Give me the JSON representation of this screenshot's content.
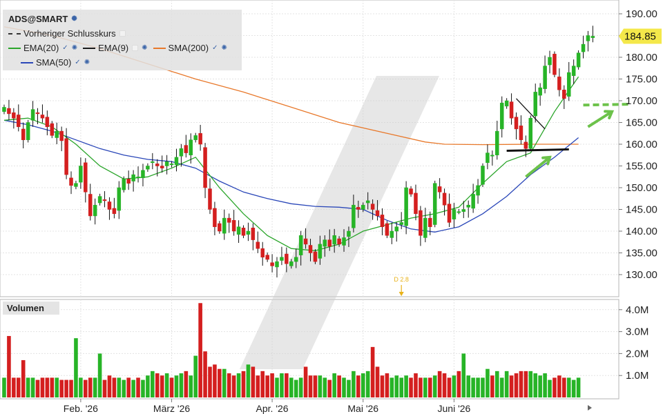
{
  "legend": {
    "symbol": "ADS@SMART",
    "prev_close": "Vorheriger Schlusskurs",
    "ema20": "EMA(20)",
    "ema9": "EMA(9)",
    "sma200": "SMA(200)",
    "sma50": "SMA(50)"
  },
  "volume_title": "Volumen",
  "last_price_label": "184.85",
  "dividend_marker": "D 2.8",
  "colors": {
    "up": "#27b427",
    "down": "#d41f1f",
    "ema20": "#2aa52a",
    "ema9": "#1a1a1a",
    "sma200": "#e8782a",
    "sma50": "#2946b8",
    "last_price_bg": "#f4e84a",
    "annotation_green": "#6cc24a"
  },
  "chart_data": [
    {
      "type": "candlestick",
      "title": "ADS@SMART",
      "yticks": [
        "130.00",
        "135.00",
        "140.00",
        "145.00",
        "150.00",
        "155.00",
        "160.00",
        "165.00",
        "170.00",
        "175.00",
        "180.00",
        "185.00",
        "190.00"
      ],
      "ylim": [
        126,
        192
      ],
      "xticks": [
        "Feb. '26",
        "März '26",
        "Apr. '26",
        "Mai '26",
        "Juni '26"
      ],
      "xtick_sessions": [
        16,
        35,
        56,
        75,
        94
      ],
      "last_price": 184.85,
      "grid": true,
      "sessions": 121,
      "dividend_session": 83,
      "closes": [
        168.5,
        167,
        166,
        164,
        161,
        165,
        168,
        167,
        166,
        164,
        162,
        163,
        160.8,
        153,
        150.5,
        151,
        155,
        149,
        143.5,
        146,
        148,
        147,
        145,
        144,
        150,
        152,
        151,
        153,
        152.5,
        154,
        155,
        156,
        155,
        154.5,
        156,
        155.5,
        157,
        159,
        158,
        161,
        162,
        160,
        150,
        145,
        141,
        140,
        143,
        142,
        140,
        141,
        139,
        140,
        138,
        136,
        134,
        133.5,
        132,
        133,
        134,
        132.5,
        133,
        134,
        139,
        137,
        135,
        133,
        137,
        138,
        136.5,
        139,
        137,
        138.5,
        140,
        146,
        145,
        146,
        147,
        145,
        143.5,
        141,
        139,
        140,
        141,
        142,
        150,
        148.5,
        144,
        139,
        143,
        141,
        151,
        149,
        146,
        142,
        145,
        144.5,
        145,
        146,
        148.5,
        150.5,
        155,
        158,
        157.5,
        163,
        169.5,
        170,
        166,
        163.5,
        161,
        159,
        166,
        172,
        173,
        178,
        180,
        176,
        172.5,
        170.5,
        176.5,
        178,
        181,
        183,
        185,
        184.85
      ],
      "moving_averages": [
        {
          "name": "SMA(200)",
          "values": [
            [
              0,
              187
            ],
            [
              10,
              185
            ],
            [
              20,
              182
            ],
            [
              30,
              178.5
            ],
            [
              40,
              175
            ],
            [
              50,
              172
            ],
            [
              60,
              168.5
            ],
            [
              70,
              165
            ],
            [
              80,
              162.5
            ],
            [
              88,
              160.5
            ],
            [
              92,
              160
            ],
            [
              100,
              159.9
            ],
            [
              110,
              160
            ],
            [
              120,
              160
            ]
          ]
        },
        {
          "name": "SMA(50)",
          "values": [
            [
              0,
              165.5
            ],
            [
              5,
              164.5
            ],
            [
              10,
              163
            ],
            [
              15,
              161
            ],
            [
              20,
              159
            ],
            [
              25,
              157.5
            ],
            [
              30,
              156.5
            ],
            [
              35,
              156
            ],
            [
              40,
              154.5
            ],
            [
              45,
              151.5
            ],
            [
              50,
              149
            ],
            [
              55,
              147.5
            ],
            [
              60,
              146.3
            ],
            [
              65,
              145.7
            ],
            [
              70,
              145.5
            ],
            [
              75,
              145
            ],
            [
              80,
              142.5
            ],
            [
              85,
              140.5
            ],
            [
              90,
              139.8
            ],
            [
              95,
              141
            ],
            [
              100,
              144
            ],
            [
              105,
              148
            ],
            [
              110,
              153
            ],
            [
              115,
              157
            ],
            [
              120,
              161.5
            ]
          ]
        },
        {
          "name": "EMA(20)",
          "values": [
            [
              0,
              165.5
            ],
            [
              5,
              166
            ],
            [
              10,
              164
            ],
            [
              15,
              160
            ],
            [
              20,
              155
            ],
            [
              25,
              152
            ],
            [
              30,
              152.5
            ],
            [
              35,
              154.5
            ],
            [
              40,
              157
            ],
            [
              45,
              150
            ],
            [
              50,
              144
            ],
            [
              55,
              139
            ],
            [
              60,
              136
            ],
            [
              65,
              135.5
            ],
            [
              70,
              137
            ],
            [
              75,
              140
            ],
            [
              80,
              141.5
            ],
            [
              85,
              143
            ],
            [
              90,
              144
            ],
            [
              95,
              145.5
            ],
            [
              100,
              151
            ],
            [
              105,
              156
            ],
            [
              110,
              158
            ],
            [
              115,
              167.5
            ],
            [
              120,
              175.5
            ]
          ]
        }
      ],
      "annotations": {
        "support_line": {
          "from": [
            105,
            158.5
          ],
          "to": [
            118,
            158.8
          ]
        },
        "trend_line": {
          "from": [
            107,
            170.5
          ],
          "to": [
            113,
            163.5
          ]
        },
        "dashed_level": {
          "from": [
            121,
            169
          ],
          "to": [
            131,
            169.2
          ]
        },
        "arrows": [
          {
            "from": [
              109,
              152.5
            ],
            "to": [
              114,
              157
            ]
          },
          {
            "from": [
              122,
              164
            ],
            "to": [
              127,
              167.5
            ]
          }
        ]
      }
    },
    {
      "type": "bar",
      "title": "Volumen",
      "yticks": [
        "1.0M",
        "2.0M",
        "3.0M",
        "4.0M"
      ],
      "ylim": [
        0,
        4.3
      ],
      "values": [
        0.9,
        2.8,
        0.9,
        0.9,
        1.7,
        0.9,
        0.9,
        0.8,
        0.9,
        0.9,
        0.9,
        0.9,
        0.8,
        0.8,
        0.8,
        2.7,
        0.9,
        0.8,
        0.9,
        0.9,
        2.0,
        0.8,
        1.0,
        0.9,
        0.9,
        0.8,
        0.9,
        0.8,
        0.9,
        0.8,
        1.0,
        1.2,
        1.1,
        1.0,
        1.1,
        0.9,
        1.0,
        1.1,
        1.2,
        1.0,
        1.9,
        4.3,
        2.1,
        1.4,
        1.5,
        1.3,
        1.3,
        1.1,
        1.0,
        1.1,
        1.2,
        1.5,
        1.4,
        1.0,
        1.2,
        1.0,
        1.1,
        0.9,
        1.1,
        1.1,
        0.9,
        0.8,
        0.9,
        1.4,
        1.0,
        1.0,
        1.0,
        0.9,
        0.8,
        1.1,
        1.0,
        0.9,
        0.8,
        1.2,
        1.0,
        1.1,
        1.2,
        2.3,
        1.4,
        1.0,
        1.1,
        0.9,
        1.0,
        0.9,
        1.0,
        0.9,
        1.1,
        0.9,
        0.9,
        0.9,
        1.0,
        1.2,
        1.1,
        0.9,
        1.0,
        1.2,
        2.0,
        1.0,
        0.9,
        0.9,
        0.9,
        1.3,
        1.0,
        1.2,
        0.9,
        1.2,
        1.0,
        1.1,
        1.2,
        1.2,
        1.2,
        1.1,
        1.0,
        1.1,
        0.8,
        0.9,
        1.0,
        0.9,
        0.9,
        0.8,
        0.9
      ]
    }
  ]
}
